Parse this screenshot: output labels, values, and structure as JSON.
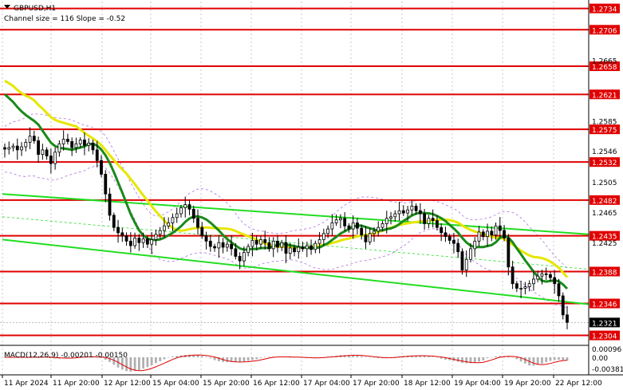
{
  "chart_data": {
    "type": "candlestick",
    "symbol_label": "GBPUSD,H1",
    "channel_label": "Channel size = 116 Slope = -0.52",
    "price_axis": {
      "range": [
        1.2292,
        1.2743
      ],
      "ticks": [
        "1.2734",
        "1.2706",
        "1.2665",
        "1.2658",
        "1.2621",
        "1.2585",
        "1.2575",
        "1.2546",
        "1.2532",
        "1.2505",
        "1.2482",
        "1.2465",
        "1.2435",
        "1.2425",
        "1.2388",
        "1.2346",
        "1.2321",
        "1.2304"
      ]
    },
    "levels": [
      {
        "label": "1.2734",
        "value": 1.2734
      },
      {
        "label": "1.2706",
        "value": 1.2706
      },
      {
        "label": "1.2658",
        "value": 1.2658
      },
      {
        "label": "1.2621",
        "value": 1.2621
      },
      {
        "label": "1.2575",
        "value": 1.2575
      },
      {
        "label": "1.2532",
        "value": 1.2532
      },
      {
        "label": "1.2482",
        "value": 1.2482
      },
      {
        "label": "1.2435",
        "value": 1.2435
      },
      {
        "label": "1.2388",
        "value": 1.2388
      },
      {
        "label": "1.2346",
        "value": 1.2346
      },
      {
        "label": "1.2304",
        "value": 1.2304
      }
    ],
    "current_price": {
      "label": "1.2321",
      "value": 1.2321
    },
    "x_labels": [
      "11 Apr 2024",
      "11 Apr 20:00",
      "12 Apr 12:00",
      "15 Apr 04:00",
      "15 Apr 20:00",
      "16 Apr 12:00",
      "17 Apr 04:00",
      "17 Apr 20:00",
      "18 Apr 12:00",
      "19 Apr 04:00",
      "19 Apr 20:00",
      "22 Apr 12:00"
    ],
    "closes": [
      1.2549,
      1.2551,
      1.2553,
      1.2548,
      1.2552,
      1.2558,
      1.2566,
      1.256,
      1.2542,
      1.2548,
      1.254,
      1.253,
      1.2545,
      1.2556,
      1.2562,
      1.2559,
      1.2551,
      1.2556,
      1.2561,
      1.2554,
      1.2557,
      1.2548,
      1.2534,
      1.2516,
      1.249,
      1.2462,
      1.2446,
      1.2439,
      1.2435,
      1.2428,
      1.2422,
      1.2432,
      1.2426,
      1.2431,
      1.2424,
      1.243,
      1.2437,
      1.2442,
      1.2448,
      1.2452,
      1.2459,
      1.2464,
      1.2472,
      1.2476,
      1.247,
      1.2458,
      1.2446,
      1.2435,
      1.2428,
      1.2421,
      1.2419,
      1.2426,
      1.242,
      1.2424,
      1.2418,
      1.2408,
      1.2402,
      1.2413,
      1.2421,
      1.2429,
      1.2424,
      1.243,
      1.2426,
      1.2418,
      1.2428,
      1.242,
      1.2426,
      1.2412,
      1.2419,
      1.2414,
      1.242,
      1.2418,
      1.2422,
      1.2417,
      1.2425,
      1.243,
      1.2438,
      1.2444,
      1.2452,
      1.2456,
      1.2458,
      1.2448,
      1.2444,
      1.2452,
      1.2445,
      1.2436,
      1.2427,
      1.2438,
      1.2441,
      1.2446,
      1.2451,
      1.2458,
      1.246,
      1.2464,
      1.2468,
      1.2465,
      1.2469,
      1.2474,
      1.2468,
      1.2464,
      1.2451,
      1.2458,
      1.2455,
      1.2446,
      1.2439,
      1.2434,
      1.2429,
      1.2425,
      1.2414,
      1.239,
      1.2404,
      1.2418,
      1.2428,
      1.244,
      1.2434,
      1.2441,
      1.2436,
      1.2448,
      1.2442,
      1.2432,
      1.2394,
      1.2372,
      1.2366,
      1.2366,
      1.2368,
      1.2372,
      1.2378,
      1.2382,
      1.2385,
      1.2384,
      1.238,
      1.2372,
      1.2356,
      1.2331,
      1.2321
    ]
  },
  "macd": {
    "label": "MACD(12,26,9) -0.00201 -0.00150",
    "axis_ticks": [
      "0.00096",
      "0.00",
      "-0.00381"
    ]
  },
  "colors": {
    "level": "#e00000",
    "channel": "#22dd22",
    "ma_fast": "#1a8a1a",
    "ma_slow": "#e6e600",
    "candle": "#000000",
    "macd_hist": "#b0b0b0",
    "macd_signal": "#e00000",
    "grid": "#c8c8c8",
    "envelope": "#b070e0"
  }
}
